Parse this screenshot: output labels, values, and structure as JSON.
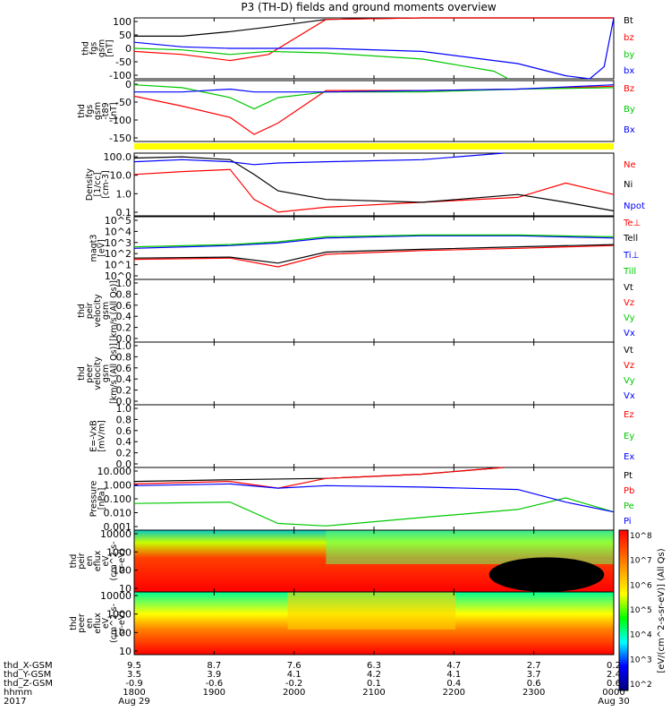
{
  "title": "P3 (TH-D) fields and ground moments overview",
  "colors": {
    "black": "#000000",
    "red": "#ff0000",
    "green": "#00c800",
    "blue": "#0000ff",
    "yellow": "#ffff00",
    "frame": "#000000"
  },
  "chart_data": [
    {
      "type": "line",
      "panel_label": [
        "thd",
        "fgs",
        "gsm",
        "[nT]"
      ],
      "ylim": [
        -100,
        100
      ],
      "yticks": [
        "100",
        "50",
        "0",
        "-50",
        "-100"
      ],
      "series": [
        {
          "name": "Bt",
          "color": "#000000",
          "x": [
            0,
            0.1,
            0.2,
            0.28,
            0.4,
            0.6,
            0.8,
            0.95,
            1
          ],
          "y": [
            40,
            40,
            55,
            70,
            95,
            100,
            100,
            100,
            100
          ]
        },
        {
          "name": "bz",
          "color": "#ff0000",
          "x": [
            0,
            0.1,
            0.2,
            0.28,
            0.4,
            0.6,
            0.8,
            0.95,
            1
          ],
          "y": [
            -10,
            -20,
            -40,
            -20,
            95,
            100,
            100,
            100,
            100
          ]
        },
        {
          "name": "by",
          "color": "#00c800",
          "x": [
            0,
            0.1,
            0.2,
            0.28,
            0.4,
            0.6,
            0.75,
            0.78
          ],
          "y": [
            0,
            -5,
            -20,
            -10,
            -15,
            -35,
            -75,
            -100
          ]
        },
        {
          "name": "bx",
          "color": "#0000ff",
          "x": [
            0,
            0.1,
            0.2,
            0.28,
            0.4,
            0.6,
            0.8,
            0.9,
            0.95,
            0.98,
            1
          ],
          "y": [
            20,
            5,
            0,
            0,
            0,
            -10,
            -50,
            -90,
            -100,
            -60,
            100
          ]
        }
      ]
    },
    {
      "type": "line",
      "panel_label": [
        "thd",
        "fgs",
        "gsm",
        "-t89",
        "[nT]"
      ],
      "ylim": [
        -175,
        40
      ],
      "yticks": [
        "0",
        "-50",
        "-100",
        "-150"
      ],
      "series": [
        {
          "name": "Bz",
          "color": "#ff0000",
          "x": [
            0,
            0.1,
            0.2,
            0.25,
            0.3,
            0.4,
            0.6,
            0.8,
            1
          ],
          "y": [
            -15,
            -50,
            -90,
            -150,
            -110,
            5,
            5,
            10,
            20
          ]
        },
        {
          "name": "By",
          "color": "#00c800",
          "x": [
            0,
            0.1,
            0.2,
            0.25,
            0.3,
            0.4,
            0.6,
            0.8,
            1
          ],
          "y": [
            25,
            15,
            -20,
            -60,
            -20,
            0,
            0,
            10,
            15
          ]
        },
        {
          "name": "Bx",
          "color": "#0000ff",
          "x": [
            0,
            0.1,
            0.2,
            0.25,
            0.3,
            0.4,
            0.6,
            0.8,
            1
          ],
          "y": [
            0,
            0,
            10,
            0,
            0,
            0,
            5,
            10,
            25
          ]
        }
      ]
    },
    {
      "type": "line",
      "panel_label": [
        "Density",
        "[1/cc]",
        "[cm-3]"
      ],
      "scale": "log",
      "ylim": [
        0.03,
        200
      ],
      "yticks": [
        "100.0",
        "10.0",
        "1.0",
        "0.1"
      ],
      "series": [
        {
          "name": "Ne",
          "color": "#ff0000",
          "x": [
            0,
            0.1,
            0.2,
            0.25,
            0.3,
            0.4,
            0.6,
            0.8,
            0.9,
            1
          ],
          "y": [
            10,
            15,
            20,
            0.3,
            0.05,
            0.1,
            0.2,
            0.4,
            3,
            0.6
          ]
        },
        {
          "name": "Ni",
          "color": "#000000",
          "x": [
            0,
            0.1,
            0.2,
            0.25,
            0.3,
            0.4,
            0.6,
            0.8,
            0.9,
            1
          ],
          "y": [
            100,
            120,
            80,
            10,
            1,
            0.3,
            0.2,
            0.6,
            0.2,
            0.06
          ]
        },
        {
          "name": "Npot",
          "color": "#0000ff",
          "x": [
            0,
            0.1,
            0.2,
            0.25,
            0.3,
            0.4,
            0.6,
            0.77
          ],
          "y": [
            60,
            80,
            60,
            40,
            50,
            60,
            80,
            200
          ]
        }
      ]
    },
    {
      "type": "line",
      "panel_label": [
        "magt3",
        "[eV]"
      ],
      "scale": "log",
      "ylim": [
        1,
        100000
      ],
      "yticks": [
        "10^5",
        "10^4",
        "10^3",
        "10^2",
        "10^1",
        "10^0"
      ],
      "series": [
        {
          "name": "Te⊥",
          "color": "#ff0000",
          "x": [
            0,
            0.2,
            0.3,
            0.4,
            0.6,
            0.8,
            1
          ],
          "y": [
            40,
            50,
            10,
            100,
            200,
            300,
            500
          ]
        },
        {
          "name": "Tell",
          "color": "#000000",
          "x": [
            0,
            0.2,
            0.3,
            0.4,
            0.6,
            0.8,
            1
          ],
          "y": [
            50,
            60,
            20,
            150,
            250,
            400,
            600
          ]
        },
        {
          "name": "Ti⊥",
          "color": "#0000ff",
          "x": [
            0,
            0.2,
            0.3,
            0.4,
            0.6,
            0.8,
            1
          ],
          "y": [
            300,
            500,
            800,
            2000,
            3000,
            3000,
            2000
          ]
        },
        {
          "name": "Till",
          "color": "#00c800",
          "x": [
            0,
            0.2,
            0.3,
            0.4,
            0.6,
            0.8,
            1
          ],
          "y": [
            400,
            600,
            1000,
            2500,
            3500,
            3500,
            2500
          ]
        }
      ]
    },
    {
      "type": "line",
      "panel_label": [
        "thd",
        "peir",
        "velocity",
        "gsm",
        "[km/s (All Qs)]"
      ],
      "ylim": [
        0,
        1
      ],
      "yticks": [
        "1.0",
        "0.8",
        "0.6",
        "0.4",
        "0.2",
        "0.0"
      ],
      "series": [
        {
          "name": "Vt",
          "color": "#000000",
          "x": [],
          "y": []
        },
        {
          "name": "Vz",
          "color": "#ff0000",
          "x": [],
          "y": []
        },
        {
          "name": "Vy",
          "color": "#00c800",
          "x": [],
          "y": []
        },
        {
          "name": "Vx",
          "color": "#0000ff",
          "x": [],
          "y": []
        }
      ]
    },
    {
      "type": "line",
      "panel_label": [
        "thd",
        "peer",
        "velocity",
        "gsm",
        "[km/s (All Qs)]"
      ],
      "ylim": [
        0,
        1
      ],
      "yticks": [
        "1.0",
        "0.8",
        "0.6",
        "0.4",
        "0.2",
        "0.0"
      ],
      "series": [
        {
          "name": "Vt",
          "color": "#000000",
          "x": [],
          "y": []
        },
        {
          "name": "Vz",
          "color": "#ff0000",
          "x": [],
          "y": []
        },
        {
          "name": "Vy",
          "color": "#00c800",
          "x": [],
          "y": []
        },
        {
          "name": "Vx",
          "color": "#0000ff",
          "x": [],
          "y": []
        }
      ]
    },
    {
      "type": "line",
      "panel_label": [
        "E=-VxB",
        "[mV/m]"
      ],
      "ylim": [
        0,
        1
      ],
      "yticks": [
        "1.0",
        "0.8",
        "0.6",
        "0.4",
        "0.2",
        "0.0"
      ],
      "series": [
        {
          "name": "Ez",
          "color": "#ff0000",
          "x": [],
          "y": []
        },
        {
          "name": "Ey",
          "color": "#00c800",
          "x": [],
          "y": []
        },
        {
          "name": "Ex",
          "color": "#0000ff",
          "x": [],
          "y": []
        }
      ]
    },
    {
      "type": "line",
      "panel_label": [
        "Pressure",
        "[nPa]"
      ],
      "scale": "log",
      "ylim": [
        0.001,
        30
      ],
      "yticks": [
        "10.000",
        "1.000",
        "0.100",
        "0.010",
        "0.001"
      ],
      "series": [
        {
          "name": "Pt",
          "color": "#000000",
          "x": [
            0,
            0.2,
            0.4,
            0.6,
            0.77
          ],
          "y": [
            3,
            4,
            5,
            10,
            30
          ]
        },
        {
          "name": "Pb",
          "color": "#ff0000",
          "x": [
            0,
            0.2,
            0.3,
            0.4,
            0.6,
            0.77
          ],
          "y": [
            2,
            3,
            1,
            5,
            10,
            30
          ]
        },
        {
          "name": "Pe",
          "color": "#00c800",
          "x": [
            0,
            0.2,
            0.3,
            0.4,
            0.6,
            0.8,
            0.9,
            1
          ],
          "y": [
            0.08,
            0.1,
            0.003,
            0.002,
            0.008,
            0.03,
            0.2,
            0.02
          ]
        },
        {
          "name": "Pi",
          "color": "#0000ff",
          "x": [
            0,
            0.2,
            0.3,
            0.4,
            0.6,
            0.8,
            0.9,
            1
          ],
          "y": [
            1.5,
            2,
            1,
            1.5,
            1.2,
            0.8,
            0.1,
            0.02
          ]
        }
      ]
    },
    {
      "type": "heatmap",
      "panel_label": [
        "thd",
        "peir",
        "en",
        "eflux",
        "eV",
        "(cm^2-s-",
        "sr-eV)"
      ],
      "yticks": [
        "10000",
        "1000",
        "100",
        "10"
      ]
    },
    {
      "type": "heatmap",
      "panel_label": [
        "thd",
        "peer",
        "en",
        "eflux",
        "eV",
        "(cm^2-s-",
        "sr-eV)"
      ],
      "yticks": [
        "10000",
        "1000",
        "100",
        "10"
      ]
    }
  ],
  "colorbar": {
    "label": "[eV/(cm^2-s-sr-eV)] (All Qs)",
    "ticks": [
      "10^8",
      "10^7",
      "10^6",
      "10^5",
      "10^4",
      "10^3",
      "10^2"
    ]
  },
  "x_axis": {
    "rows": [
      {
        "label": "thd_X-GSM",
        "values": [
          "9.5",
          "8.7",
          "7.6",
          "6.3",
          "4.7",
          "2.7",
          "0.2"
        ]
      },
      {
        "label": "thd_Y-GSM",
        "values": [
          "3.5",
          "3.9",
          "4.1",
          "4.2",
          "4.1",
          "3.7",
          "2.4"
        ]
      },
      {
        "label": "thd_Z-GSM",
        "values": [
          "-0.9",
          "-0.6",
          "-0.2",
          "0.1",
          "0.4",
          "0.6",
          "0.6"
        ]
      },
      {
        "label": "hhmm",
        "values": [
          "1800",
          "1900",
          "2000",
          "2100",
          "2200",
          "2300",
          "0000"
        ]
      },
      {
        "label": "2017",
        "values": [
          "Aug 29",
          "",
          "",
          "",
          "",
          "",
          "Aug 30"
        ]
      }
    ]
  }
}
